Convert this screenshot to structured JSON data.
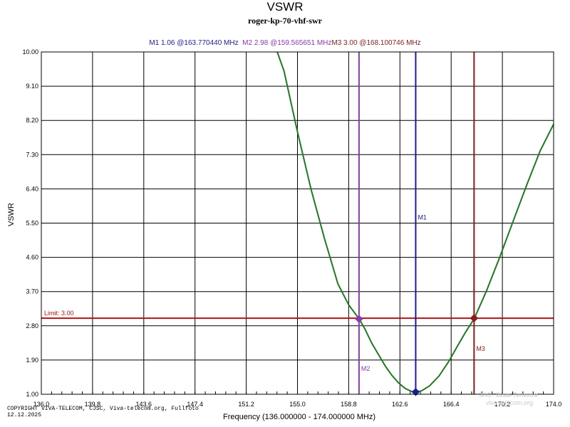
{
  "chart_data": {
    "type": "line",
    "title": "VSWR",
    "subtitle": "roger-kp-70-vhf-swr",
    "xlabel": "Frequency (136.000000 - 174.000000 MHz)",
    "ylabel": "VSWR",
    "xlim": [
      136.0,
      174.0
    ],
    "ylim": [
      1.0,
      10.0
    ],
    "x_ticks": [
      "136.0",
      "139.8",
      "143.6",
      "147.4",
      "151.2",
      "155.0",
      "158.8",
      "162.6",
      "166.4",
      "170.2",
      "174.0"
    ],
    "y_ticks": [
      "1.00",
      "1.90",
      "2.80",
      "3.70",
      "4.60",
      "5.50",
      "6.40",
      "7.30",
      "8.20",
      "9.10",
      "10.00"
    ],
    "grid": true,
    "series": [
      {
        "name": "VSWR",
        "color": "#1e7a1e",
        "x": [
          153.5,
          154.0,
          155.0,
          156.0,
          157.0,
          158.0,
          158.8,
          159.57,
          160.0,
          160.5,
          161.0,
          161.5,
          162.0,
          162.5,
          163.0,
          163.5,
          163.77,
          164.2,
          164.8,
          165.5,
          166.2,
          167.0,
          167.5,
          168.1,
          169.0,
          170.0,
          171.0,
          172.0,
          173.0,
          174.0
        ],
        "y": [
          10.0,
          9.5,
          7.9,
          6.4,
          5.1,
          3.9,
          3.35,
          2.98,
          2.72,
          2.35,
          2.05,
          1.75,
          1.5,
          1.3,
          1.15,
          1.07,
          1.06,
          1.09,
          1.22,
          1.48,
          1.85,
          2.35,
          2.65,
          2.98,
          3.7,
          4.6,
          5.55,
          6.5,
          7.4,
          8.1
        ]
      }
    ],
    "limit": {
      "label": "Limit: 3.00",
      "value": 3.0,
      "color": "#b01515"
    },
    "markers": [
      {
        "name": "M1",
        "freq": 163.77044,
        "vswr": 1.06,
        "color": "#1a1aa0",
        "label_pos": "middle"
      },
      {
        "name": "M2",
        "freq": 159.565651,
        "vswr": 2.98,
        "color": "#8a3ab8",
        "label_pos": "bottom"
      },
      {
        "name": "M3",
        "freq": 168.100746,
        "vswr": 3.0,
        "color": "#8b1a1a",
        "label_pos": "lower"
      }
    ]
  },
  "marker_header": {
    "m1": "M1   1.06 @163.770440 MHz",
    "m2": "M2   2.98 @159.565651 MHz",
    "m3": "M3   3.00 @168.100746 MHz"
  },
  "footer": {
    "copyright_line1": "COPYRIGHT VIVA-TELECOM, CJSC, Viva-telecom.org, Fullfoto",
    "copyright_line2": "12.12.2025",
    "watermark_line1": "ЗАО \"Вива-Телеком\"",
    "watermark_line2": "viva-telecom.org"
  }
}
